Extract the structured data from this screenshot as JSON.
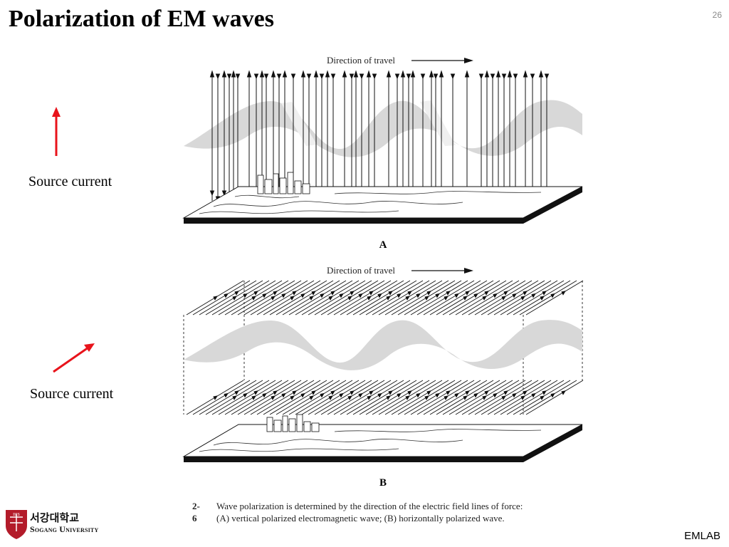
{
  "slide": {
    "title": "Polarization of EM waves",
    "page_number": "26",
    "footer_brand": "EMLAB"
  },
  "panel_a": {
    "direction_label": "Direction of travel",
    "letter": "A",
    "source_label": "Source current",
    "source_arrow_orientation": "vertical"
  },
  "panel_b": {
    "direction_label": "Direction of travel",
    "letter": "B",
    "source_label": "Source current",
    "source_arrow_orientation": "diagonal"
  },
  "caption": {
    "number": "2-6",
    "line1": "Wave polarization is determined by the direction of the electric field lines of force:",
    "line2": "(A) vertical polarized electromagnetic wave; (B) horizontally polarized wave."
  },
  "logo": {
    "name_korean": "서강대학교",
    "name_english": "Sogang University"
  },
  "colors": {
    "source_arrow": "#e8131b",
    "wave_band": "#d8d8d8",
    "wave_highlight": "#eeeeee",
    "logo_shield": "#b31b2a"
  }
}
